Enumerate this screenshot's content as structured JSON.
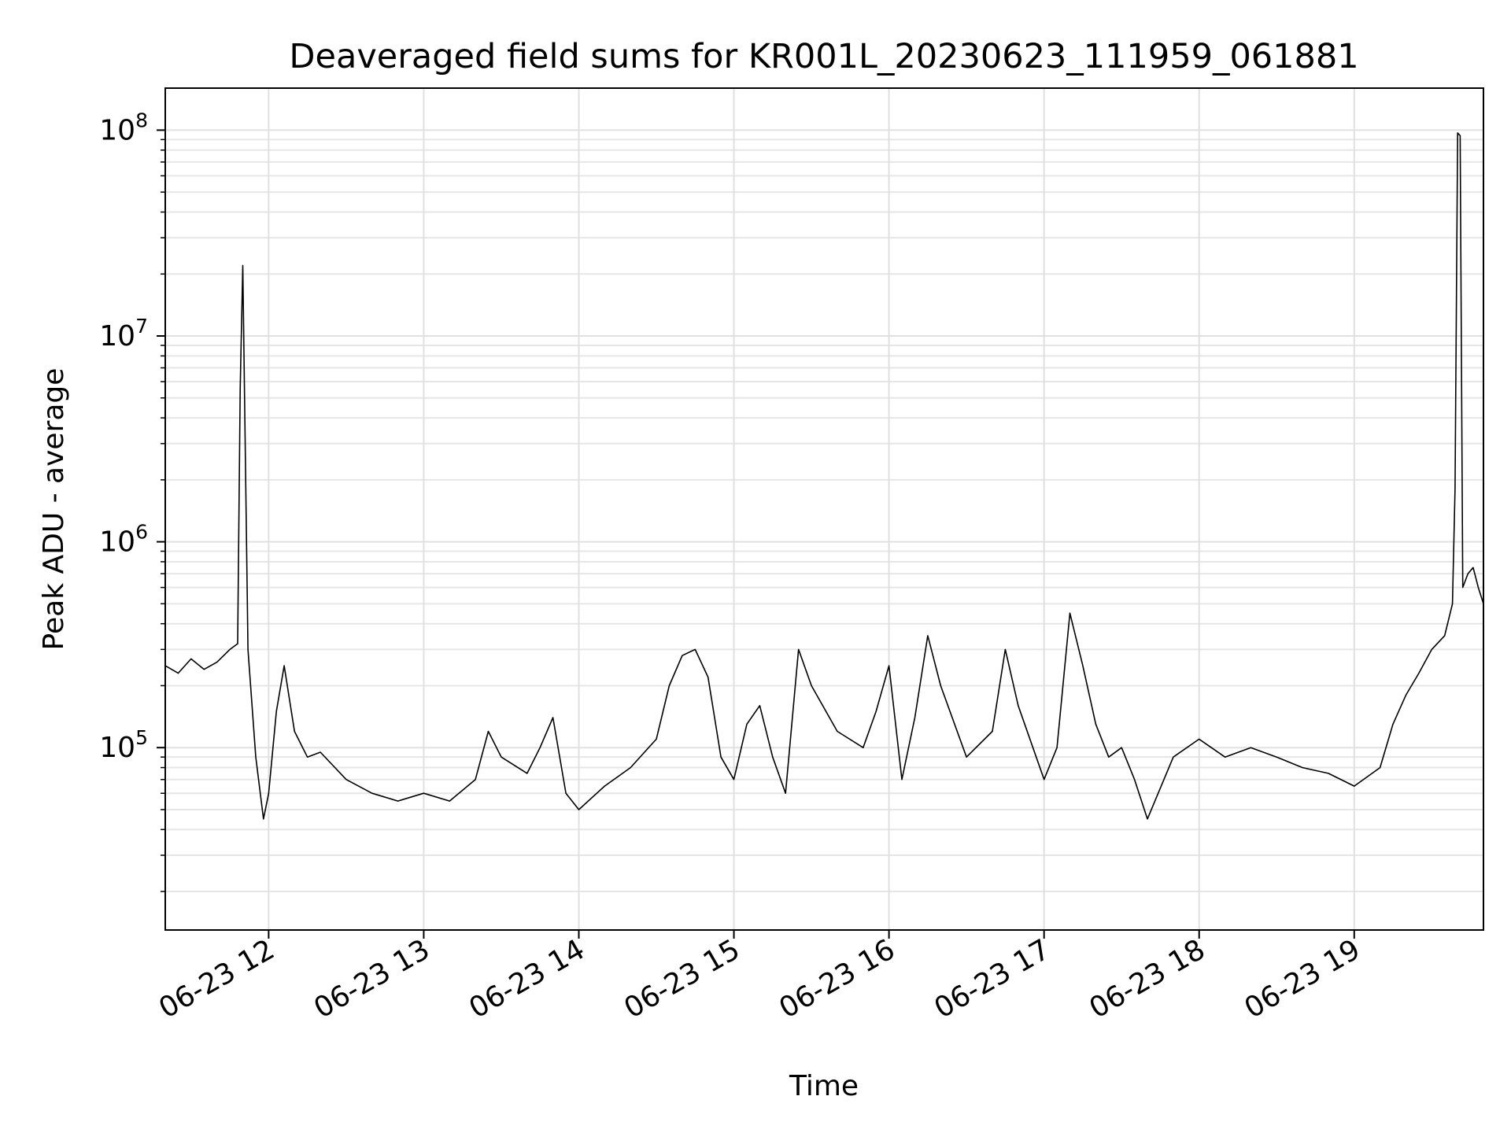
{
  "chart_data": {
    "type": "line",
    "title": "Deaveraged field sums for KR001L_20230623_111959_061881",
    "xlabel": "Time",
    "ylabel": "Peak ADU - average",
    "yscale": "log",
    "ylim": [
      13000,
      160000000
    ],
    "xlim": [
      "2023-06-23 11:20",
      "2023-06-23 19:50"
    ],
    "grid": "on (major and minor)",
    "line_color": "#000000",
    "x_ticks": [
      {
        "value": "2023-06-23 12:00",
        "label": "06-23 12"
      },
      {
        "value": "2023-06-23 13:00",
        "label": "06-23 13"
      },
      {
        "value": "2023-06-23 14:00",
        "label": "06-23 14"
      },
      {
        "value": "2023-06-23 15:00",
        "label": "06-23 15"
      },
      {
        "value": "2023-06-23 16:00",
        "label": "06-23 16"
      },
      {
        "value": "2023-06-23 17:00",
        "label": "06-23 17"
      },
      {
        "value": "2023-06-23 18:00",
        "label": "06-23 18"
      },
      {
        "value": "2023-06-23 19:00",
        "label": "06-23 19"
      }
    ],
    "y_ticks": [
      {
        "value": 100000,
        "base": "10",
        "exp": "5"
      },
      {
        "value": 1000000,
        "base": "10",
        "exp": "6"
      },
      {
        "value": 10000000,
        "base": "10",
        "exp": "7"
      },
      {
        "value": 100000000,
        "base": "10",
        "exp": "8"
      }
    ],
    "series": [
      {
        "x": [
          "2023-06-23 11:20",
          "2023-06-23 11:25",
          "2023-06-23 11:30",
          "2023-06-23 11:35",
          "2023-06-23 11:40",
          "2023-06-23 11:45",
          "2023-06-23 11:48",
          "2023-06-23 11:49",
          "2023-06-23 11:50",
          "2023-06-23 11:52",
          "2023-06-23 11:55",
          "2023-06-23 11:58",
          "2023-06-23 12:00",
          "2023-06-23 12:03",
          "2023-06-23 12:06",
          "2023-06-23 12:10",
          "2023-06-23 12:15",
          "2023-06-23 12:20",
          "2023-06-23 12:30",
          "2023-06-23 12:40",
          "2023-06-23 12:50",
          "2023-06-23 13:00",
          "2023-06-23 13:10",
          "2023-06-23 13:20",
          "2023-06-23 13:25",
          "2023-06-23 13:30",
          "2023-06-23 13:40",
          "2023-06-23 13:45",
          "2023-06-23 13:50",
          "2023-06-23 13:55",
          "2023-06-23 14:00",
          "2023-06-23 14:10",
          "2023-06-23 14:20",
          "2023-06-23 14:30",
          "2023-06-23 14:35",
          "2023-06-23 14:40",
          "2023-06-23 14:45",
          "2023-06-23 14:50",
          "2023-06-23 14:55",
          "2023-06-23 15:00",
          "2023-06-23 15:05",
          "2023-06-23 15:10",
          "2023-06-23 15:15",
          "2023-06-23 15:20",
          "2023-06-23 15:25",
          "2023-06-23 15:30",
          "2023-06-23 15:40",
          "2023-06-23 15:50",
          "2023-06-23 15:55",
          "2023-06-23 16:00",
          "2023-06-23 16:05",
          "2023-06-23 16:10",
          "2023-06-23 16:15",
          "2023-06-23 16:20",
          "2023-06-23 16:30",
          "2023-06-23 16:40",
          "2023-06-23 16:45",
          "2023-06-23 16:50",
          "2023-06-23 17:00",
          "2023-06-23 17:05",
          "2023-06-23 17:10",
          "2023-06-23 17:15",
          "2023-06-23 17:20",
          "2023-06-23 17:25",
          "2023-06-23 17:30",
          "2023-06-23 17:35",
          "2023-06-23 17:40",
          "2023-06-23 17:50",
          "2023-06-23 18:00",
          "2023-06-23 18:10",
          "2023-06-23 18:20",
          "2023-06-23 18:30",
          "2023-06-23 18:40",
          "2023-06-23 18:50",
          "2023-06-23 19:00",
          "2023-06-23 19:10",
          "2023-06-23 19:15",
          "2023-06-23 19:20",
          "2023-06-23 19:25",
          "2023-06-23 19:30",
          "2023-06-23 19:35",
          "2023-06-23 19:38",
          "2023-06-23 19:39",
          "2023-06-23 19:40",
          "2023-06-23 19:41",
          "2023-06-23 19:42",
          "2023-06-23 19:44",
          "2023-06-23 19:46",
          "2023-06-23 19:48",
          "2023-06-23 19:50"
        ],
        "y": [
          250000,
          230000,
          270000,
          240000,
          260000,
          300000,
          320000,
          5500000,
          22000000,
          300000,
          90000,
          45000,
          60000,
          150000,
          250000,
          120000,
          90000,
          95000,
          70000,
          60000,
          55000,
          60000,
          55000,
          70000,
          120000,
          90000,
          75000,
          100000,
          140000,
          60000,
          50000,
          65000,
          80000,
          110000,
          200000,
          280000,
          300000,
          220000,
          90000,
          70000,
          130000,
          160000,
          90000,
          60000,
          300000,
          200000,
          120000,
          100000,
          150000,
          250000,
          70000,
          140000,
          350000,
          200000,
          90000,
          120000,
          300000,
          160000,
          70000,
          100000,
          450000,
          250000,
          130000,
          90000,
          100000,
          70000,
          45000,
          90000,
          110000,
          90000,
          100000,
          90000,
          80000,
          75000,
          65000,
          80000,
          130000,
          180000,
          230000,
          300000,
          350000,
          500000,
          1800000,
          97000000,
          94000000,
          600000,
          700000,
          750000,
          600000,
          500000
        ]
      }
    ]
  }
}
